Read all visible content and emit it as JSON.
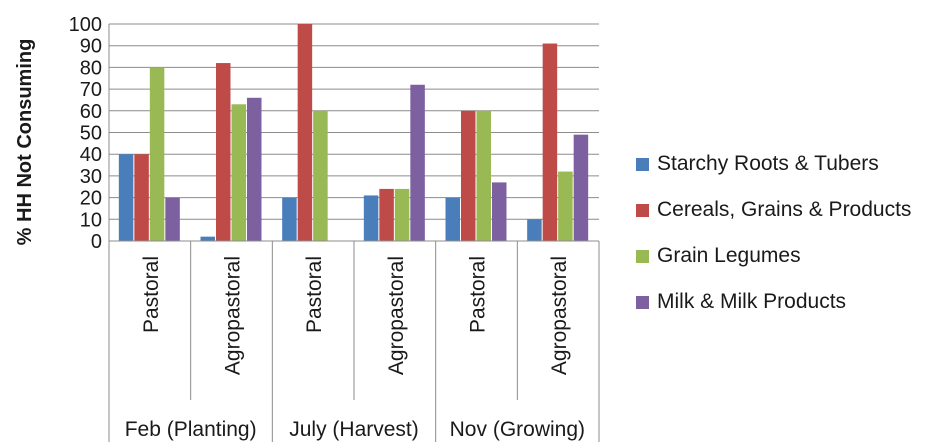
{
  "chart_data": {
    "type": "bar",
    "ylabel": "% HH Not Consuming",
    "xlabel": "",
    "ylim": [
      0,
      100
    ],
    "yticks": [
      0,
      10,
      20,
      30,
      40,
      50,
      60,
      70,
      80,
      90,
      100
    ],
    "grid": true,
    "legend_position": "right",
    "groups": [
      "Feb (Planting)",
      "July (Harvest)",
      "Nov (Growing)"
    ],
    "categories": [
      "Pastoral",
      "Agropastoral",
      "Pastoral",
      "Agropastoral",
      "Pastoral",
      "Agropastoral"
    ],
    "category_group": [
      0,
      0,
      1,
      1,
      2,
      2
    ],
    "series": [
      {
        "name": "Starchy Roots & Tubers",
        "color": "#4a7ebb",
        "values": [
          40,
          2,
          20,
          21,
          20,
          10
        ]
      },
      {
        "name": "Cereals, Grains & Products",
        "color": "#be4b48",
        "values": [
          40,
          82,
          100,
          24,
          60,
          91
        ]
      },
      {
        "name": "Grain Legumes",
        "color": "#98b954",
        "values": [
          80,
          63,
          60,
          24,
          60,
          32
        ]
      },
      {
        "name": "Milk & Milk Products",
        "color": "#7d60a0",
        "values": [
          20,
          66,
          0,
          72,
          27,
          49
        ]
      }
    ]
  }
}
